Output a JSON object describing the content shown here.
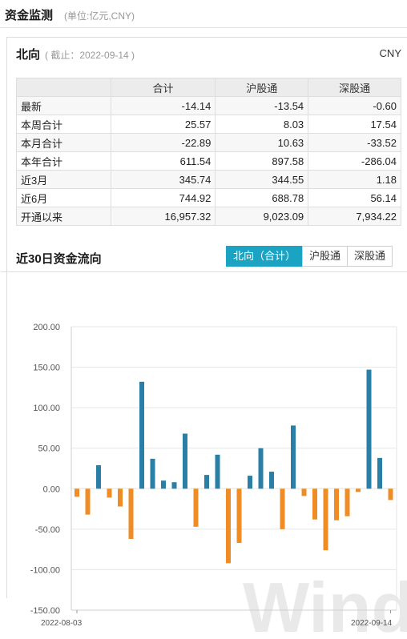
{
  "page": {
    "title": "资金监测",
    "unit": "(单位:亿元,CNY)"
  },
  "northbound": {
    "title": "北向",
    "date_note": "( 截止：2022-09-14 )",
    "currency": "CNY"
  },
  "table": {
    "headers": [
      "",
      "合计",
      "沪股通",
      "深股通"
    ],
    "rows": [
      {
        "label": "最新",
        "values": [
          "-14.14",
          "-13.54",
          "-0.60"
        ]
      },
      {
        "label": "本周合计",
        "values": [
          "25.57",
          "8.03",
          "17.54"
        ]
      },
      {
        "label": "本月合计",
        "values": [
          "-22.89",
          "10.63",
          "-33.52"
        ]
      },
      {
        "label": "本年合计",
        "values": [
          "611.54",
          "897.58",
          "-286.04"
        ]
      },
      {
        "label": "近3月",
        "values": [
          "345.74",
          "344.55",
          "1.18"
        ]
      },
      {
        "label": "近6月",
        "values": [
          "744.92",
          "688.78",
          "56.14"
        ]
      },
      {
        "label": "开通以来",
        "values": [
          "16,957.32",
          "9,023.09",
          "7,934.22"
        ]
      }
    ]
  },
  "flow_section": {
    "title": "近30日资金流向",
    "tabs": [
      {
        "label": "北向（合计）",
        "active": true
      },
      {
        "label": "沪股通",
        "active": false
      },
      {
        "label": "深股通",
        "active": false
      }
    ]
  },
  "watermark": "Wind",
  "chart_data": {
    "type": "bar",
    "ylim": [
      -150,
      200
    ],
    "yticks": [
      "200.00",
      "150.00",
      "100.00",
      "50.00",
      "0.00",
      "-50.00",
      "-100.00",
      "-150.00"
    ],
    "x_labels": [
      "2022-08-03",
      "2022-09-14"
    ],
    "positive_color": "#2a7fa6",
    "negative_color": "#ef8c25",
    "values": [
      -10,
      -32,
      29,
      -11,
      -22,
      -62,
      132,
      37,
      10,
      8,
      68,
      -47,
      17,
      42,
      -92,
      -67,
      16,
      50,
      21,
      -50,
      78,
      -9,
      -38,
      -76,
      -39,
      -34,
      -4,
      147,
      38,
      -14
    ]
  }
}
